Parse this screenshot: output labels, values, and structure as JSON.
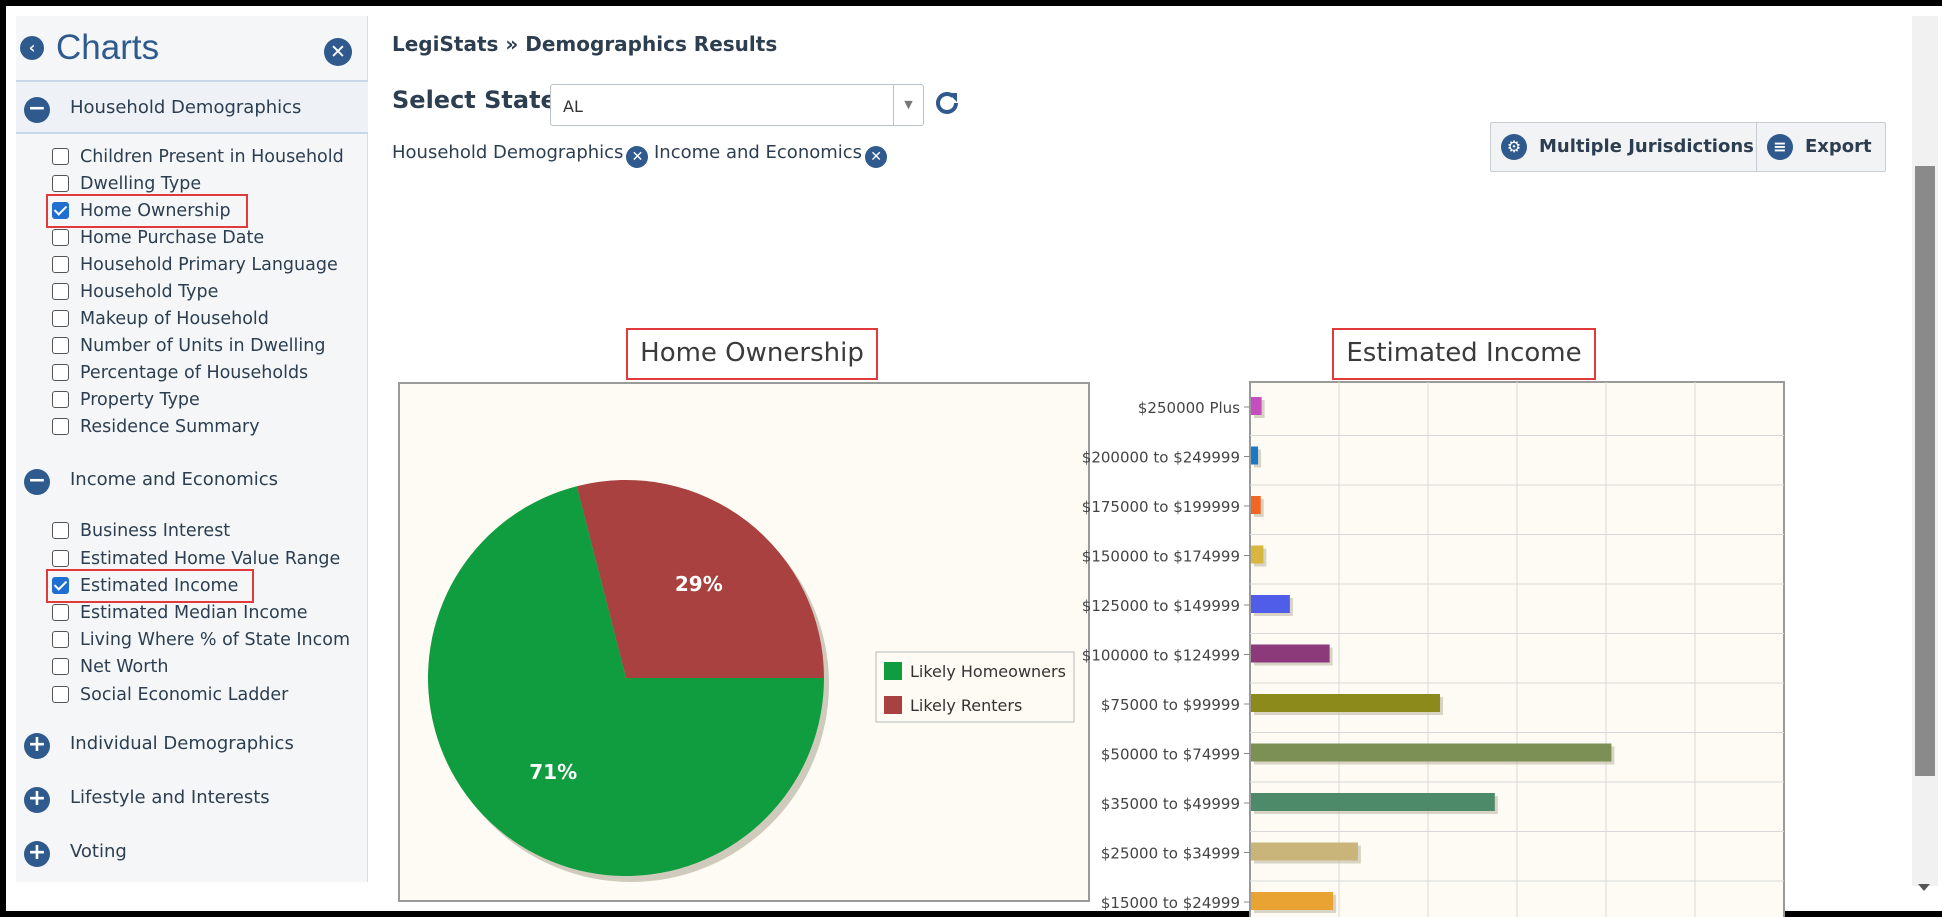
{
  "sidebar": {
    "title": "Charts",
    "sections": [
      {
        "label": "Household Demographics",
        "expanded": true,
        "items": [
          {
            "label": "Children Present in Household",
            "checked": false
          },
          {
            "label": "Dwelling Type",
            "checked": false
          },
          {
            "label": "Home Ownership",
            "checked": true
          },
          {
            "label": "Home Purchase Date",
            "checked": false
          },
          {
            "label": "Household Primary Language",
            "checked": false
          },
          {
            "label": "Household Type",
            "checked": false
          },
          {
            "label": "Makeup of Household",
            "checked": false
          },
          {
            "label": "Number of Units in Dwelling",
            "checked": false
          },
          {
            "label": "Percentage of Households",
            "checked": false
          },
          {
            "label": "Property Type",
            "checked": false
          },
          {
            "label": "Residence Summary",
            "checked": false
          }
        ]
      },
      {
        "label": "Income and Economics",
        "expanded": true,
        "items": [
          {
            "label": "Business Interest",
            "checked": false
          },
          {
            "label": "Estimated Home Value Range",
            "checked": false
          },
          {
            "label": "Estimated Income",
            "checked": true
          },
          {
            "label": "Estimated Median Income",
            "checked": false
          },
          {
            "label": "Living Where % of State Incom",
            "checked": false
          },
          {
            "label": "Net Worth",
            "checked": false
          },
          {
            "label": "Social Economic Ladder",
            "checked": false
          }
        ]
      },
      {
        "label": "Individual Demographics",
        "expanded": false,
        "items": []
      },
      {
        "label": "Lifestyle and Interests",
        "expanded": false,
        "items": []
      },
      {
        "label": "Voting",
        "expanded": false,
        "items": []
      }
    ]
  },
  "main": {
    "breadcrumb": "LegiStats » Demographics Results",
    "select_label": "Select State",
    "state_value": "AL",
    "tags": [
      "Household Demographics",
      "Income and Economics"
    ],
    "toolbar": {
      "multiple_label": "Multiple Jurisdictions",
      "export_label": "Export"
    }
  },
  "colors": {
    "accent": "#2f5a8e",
    "highlight": "#e03a3a",
    "chart_bg": "#fdfbf3"
  },
  "chart_data": [
    {
      "type": "pie",
      "title": "Home Ownership",
      "legend_position": "right",
      "slices": [
        {
          "label": "Likely Homeowners",
          "value": 71,
          "display": "71%",
          "color": "#0f9d3f"
        },
        {
          "label": "Likely Renters",
          "value": 29,
          "display": "29%",
          "color": "#a8413f"
        }
      ]
    },
    {
      "type": "bar",
      "orientation": "horizontal",
      "title": "Estimated Income",
      "grid": true,
      "categories": [
        "$250000 Plus",
        "$200000 to $249999",
        "$175000 to $199999",
        "$150000 to $174999",
        "$125000 to $149999",
        "$100000 to $124999",
        "$75000 to $99999",
        "$50000 to $74999",
        "$35000 to $49999",
        "$25000 to $34999",
        "$15000 to $24999"
      ],
      "values": [
        1.2,
        0.8,
        1.1,
        1.4,
        4.4,
        8.9,
        21.4,
        40.8,
        27.6,
        12.1,
        9.3
      ],
      "colors": [
        "#c64fbf",
        "#1b78c4",
        "#f26522",
        "#d9b640",
        "#4f5de8",
        "#8c3a7a",
        "#8c8a1a",
        "#7c8f55",
        "#4d8a6a",
        "#c9b47a",
        "#e8a332"
      ],
      "xlim": [
        0,
        60
      ]
    }
  ]
}
